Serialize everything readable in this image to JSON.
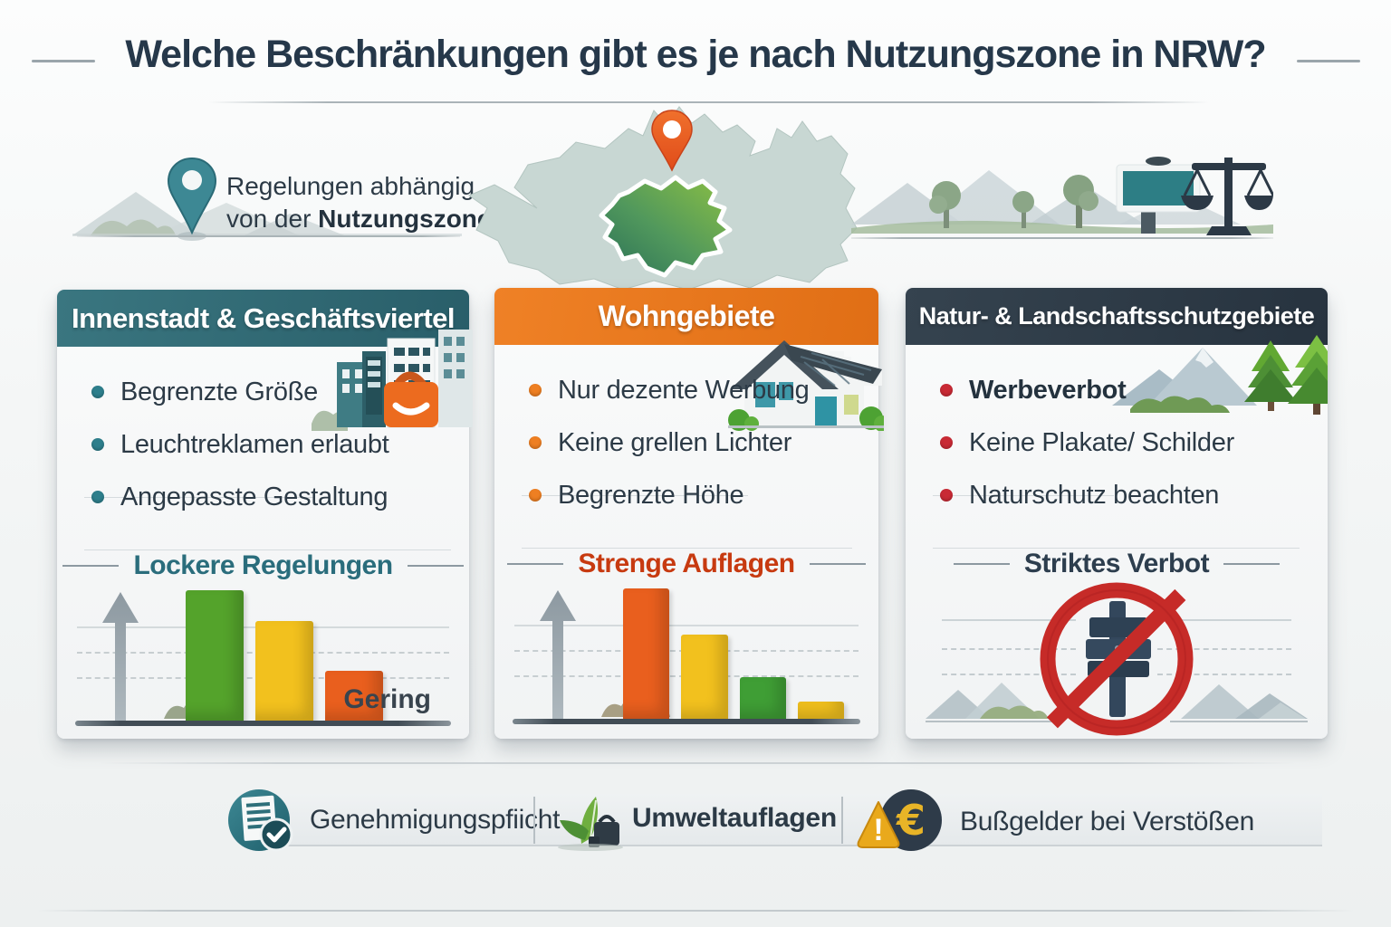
{
  "title": "Welche Beschränkungen gibt es je nach Nutzungszone in NRW?",
  "intro": {
    "line1": "Regelungen abhängig",
    "line2_prefix": "von der ",
    "line2_bold": "Nutzungszone"
  },
  "cards": [
    {
      "header": "Innenstadt & Geschäftsviertel",
      "accent": "#2f6f78",
      "bullet_color": "#2e7f8c",
      "bullets": [
        "Begrenzte Größe",
        "Leuchtreklamen erlaubt",
        "Angepasste Gestaltung"
      ],
      "verdict": "Lockere Regelungen",
      "verdict_color": "#2a6d7c"
    },
    {
      "header": "Wohngebiete",
      "accent": "#e87a22",
      "bullet_color": "#ee7f22",
      "bullets": [
        "Nur dezente Werbung",
        "Keine grellen Lichter",
        "Begrenzte Höhe"
      ],
      "verdict": "Strenge Auflagen",
      "verdict_color": "#c73a10"
    },
    {
      "header": "Natur- & Landschaftsschutzgebiete",
      "accent": "#2c3a49",
      "bullet_color": "#c92a35",
      "bullets": [
        "Werbeverbot",
        "Keine Plakate/ Schilder",
        "Naturschutz beachten"
      ],
      "verdict": "Striktes Verbot",
      "verdict_color": "#2d3e4e"
    }
  ],
  "chart_data": [
    {
      "type": "bar",
      "title": "Lockere Regelungen",
      "values": [
        0.97,
        0.74,
        0.37
      ],
      "colors": [
        "#54a32b",
        "#f2c11e",
        "#e95f1e"
      ],
      "annotation": "Gering",
      "ylim": [
        0,
        1
      ],
      "grid": "dashed"
    },
    {
      "type": "bar",
      "title": "Strenge Auflagen",
      "values": [
        0.97,
        0.63,
        0.31,
        0.13
      ],
      "colors": [
        "#e95f1e",
        "#f2c11e",
        "#3f9e35",
        "#f2c11e"
      ],
      "ylim": [
        0,
        1
      ],
      "grid": "dashed"
    }
  ],
  "footer": {
    "items": [
      {
        "label": "Genehmigungspfiicht"
      },
      {
        "label": "Umweltauflagen"
      },
      {
        "label": "Bußgelder bei Verstößen"
      }
    ],
    "euro_symbol": "€",
    "warning_symbol": "!"
  }
}
